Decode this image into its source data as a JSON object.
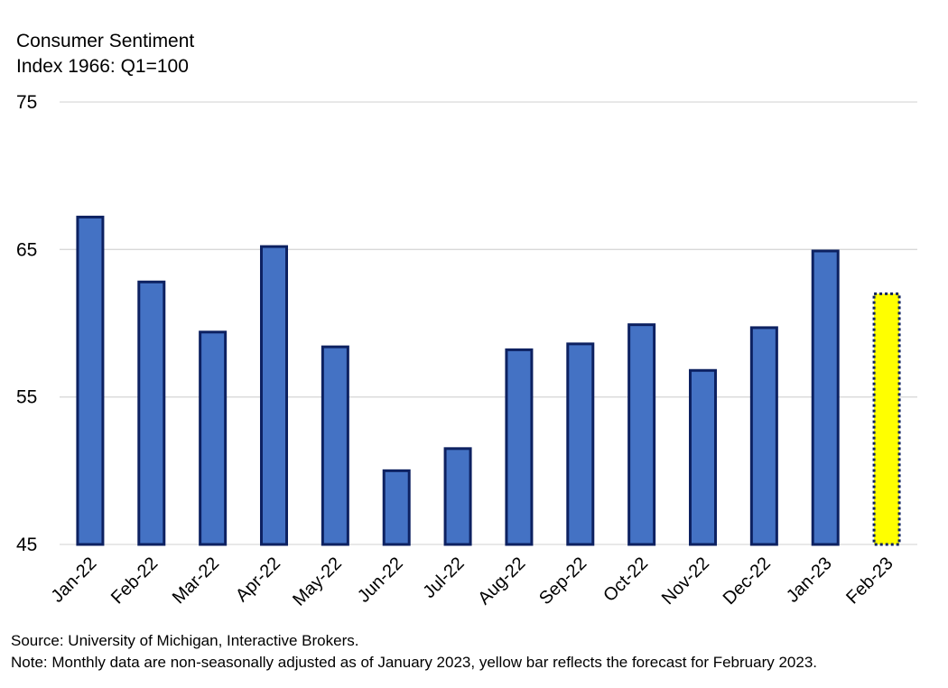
{
  "chart_data": {
    "type": "bar",
    "ylabel_line1": "Consumer Sentiment",
    "ylabel_line2": "Index 1966: Q1=100",
    "ylim": [
      45,
      75
    ],
    "yticks": [
      45,
      55,
      65,
      75
    ],
    "grid": true,
    "categories": [
      "Jan-22",
      "Feb-22",
      "Mar-22",
      "Apr-22",
      "May-22",
      "Jun-22",
      "Jul-22",
      "Aug-22",
      "Sep-22",
      "Oct-22",
      "Nov-22",
      "Dec-22",
      "Jan-23",
      "Feb-23"
    ],
    "values": [
      67.2,
      62.8,
      59.4,
      65.2,
      58.4,
      50.0,
      51.5,
      58.2,
      58.6,
      59.9,
      56.8,
      59.7,
      64.9,
      62.0
    ],
    "forecast_index": 13,
    "colors": {
      "bar_fill": "#4472C4",
      "bar_stroke": "#0D2161",
      "forecast_fill": "#FFFF00",
      "grid": "#D9D9D9"
    }
  },
  "footnotes": {
    "source": "Source: University of Michigan, Interactive Brokers.",
    "note": "Note: Monthly data are non-seasonally adjusted as of January 2023, yellow bar reflects the forecast for February 2023."
  }
}
